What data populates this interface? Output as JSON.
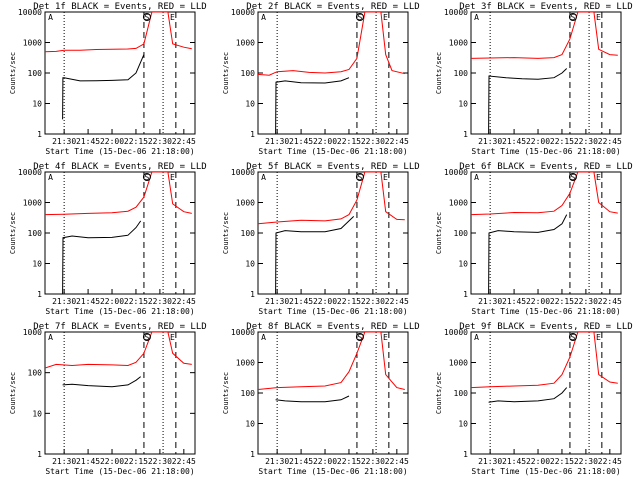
{
  "chart_data": [
    {
      "type": "line",
      "title": "Det 1f BLACK = Events, RED = LLD",
      "xlabel": "Start Time (15-Dec-06 21:18:00)",
      "ylabel": "Counts/sec",
      "x_ticks": [
        "21:30",
        "21:45",
        "22:00",
        "22:15",
        "22:30",
        "22:45"
      ],
      "ylim": [
        1,
        10000
      ],
      "y_scale": "log",
      "y_ticks": [
        "1",
        "10",
        "100",
        "1000",
        "10000"
      ],
      "markers": [
        "A",
        "S",
        "E"
      ],
      "series": [
        {
          "name": "LLD",
          "color": "#ff0000",
          "points": [
            [
              "21:18",
              500
            ],
            [
              "21:25",
              510
            ],
            [
              "21:30",
              560
            ],
            [
              "21:40",
              560
            ],
            [
              "21:50",
              590
            ],
            [
              "22:00",
              600
            ],
            [
              "22:10",
              610
            ],
            [
              "22:15",
              640
            ],
            [
              "22:20",
              900
            ],
            [
              "22:25",
              10000
            ],
            [
              "22:35",
              10000
            ],
            [
              "22:38",
              900
            ],
            [
              "22:45",
              700
            ],
            [
              "22:50",
              620
            ]
          ]
        },
        {
          "name": "Events",
          "color": "#000000",
          "points": [
            [
              "21:29",
              3
            ],
            [
              "21:29.2",
              70
            ],
            [
              "21:30",
              70
            ],
            [
              "21:40",
              55
            ],
            [
              "21:50",
              56
            ],
            [
              "22:00",
              57
            ],
            [
              "22:10",
              60
            ],
            [
              "22:15",
              100
            ],
            [
              "22:20",
              400
            ]
          ]
        }
      ]
    },
    {
      "type": "line",
      "title": "Det 2f BLACK = Events, RED = LLD",
      "xlabel": "Start Time (15-Dec-06 21:18:00)",
      "ylabel": "Counts/sec",
      "x_ticks": [
        "21:30",
        "21:45",
        "22:00",
        "22:15",
        "22:30",
        "22:45"
      ],
      "ylim": [
        1,
        10000
      ],
      "y_scale": "log",
      "y_ticks": [
        "1",
        "10",
        "100",
        "1000",
        "10000"
      ],
      "markers": [
        "A",
        "S",
        "E"
      ],
      "series": [
        {
          "name": "LLD",
          "color": "#ff0000",
          "points": [
            [
              "21:18",
              90
            ],
            [
              "21:25",
              85
            ],
            [
              "21:30",
              110
            ],
            [
              "21:40",
              120
            ],
            [
              "21:50",
              105
            ],
            [
              "22:00",
              100
            ],
            [
              "22:10",
              110
            ],
            [
              "22:15",
              130
            ],
            [
              "22:20",
              300
            ],
            [
              "22:25",
              10000
            ],
            [
              "22:35",
              10000
            ],
            [
              "22:38",
              400
            ],
            [
              "22:42",
              120
            ],
            [
              "22:50",
              95
            ]
          ]
        },
        {
          "name": "Events",
          "color": "#000000",
          "points": [
            [
              "21:29",
              1
            ],
            [
              "21:29.3",
              50
            ],
            [
              "21:35",
              55
            ],
            [
              "21:45",
              48
            ],
            [
              "22:00",
              47
            ],
            [
              "22:10",
              55
            ],
            [
              "22:15",
              70
            ]
          ]
        }
      ]
    },
    {
      "type": "line",
      "title": "Det 3f BLACK = Events, RED = LLD",
      "xlabel": "Start Time (15-Dec-06 21:18:00)",
      "ylabel": "Counts/sec",
      "x_ticks": [
        "21:30",
        "21:45",
        "22:00",
        "22:15",
        "22:30",
        "22:45"
      ],
      "ylim": [
        1,
        10000
      ],
      "y_scale": "log",
      "y_ticks": [
        "1",
        "10",
        "100",
        "1000",
        "10000"
      ],
      "markers": [
        "A",
        "S",
        "E"
      ],
      "series": [
        {
          "name": "LLD",
          "color": "#ff0000",
          "points": [
            [
              "21:18",
              300
            ],
            [
              "21:30",
              310
            ],
            [
              "21:45",
              320
            ],
            [
              "22:00",
              300
            ],
            [
              "22:10",
              320
            ],
            [
              "22:15",
              400
            ],
            [
              "22:20",
              1300
            ],
            [
              "22:25",
              10000
            ],
            [
              "22:35",
              10000
            ],
            [
              "22:38",
              600
            ],
            [
              "22:45",
              400
            ],
            [
              "22:50",
              380
            ]
          ]
        },
        {
          "name": "Events",
          "color": "#000000",
          "points": [
            [
              "21:29",
              1
            ],
            [
              "21:29.3",
              80
            ],
            [
              "21:40",
              70
            ],
            [
              "21:50",
              65
            ],
            [
              "22:00",
              62
            ],
            [
              "22:10",
              70
            ],
            [
              "22:15",
              100
            ],
            [
              "22:18",
              140
            ]
          ]
        }
      ]
    },
    {
      "type": "line",
      "title": "Det 4f BLACK = Events, RED = LLD",
      "xlabel": "Start Time (15-Dec-06 21:18:00)",
      "ylabel": "Counts/sec",
      "x_ticks": [
        "21:30",
        "21:45",
        "22:00",
        "22:15",
        "22:30",
        "22:45"
      ],
      "ylim": [
        1,
        10000
      ],
      "y_scale": "log",
      "y_ticks": [
        "1",
        "10",
        "100",
        "1000",
        "10000"
      ],
      "markers": [
        "A",
        "S",
        "E"
      ],
      "series": [
        {
          "name": "LLD",
          "color": "#ff0000",
          "points": [
            [
              "21:18",
              400
            ],
            [
              "21:30",
              410
            ],
            [
              "21:45",
              440
            ],
            [
              "22:00",
              460
            ],
            [
              "22:10",
              520
            ],
            [
              "22:15",
              700
            ],
            [
              "22:20",
              1500
            ],
            [
              "22:25",
              10000
            ],
            [
              "22:35",
              10000
            ],
            [
              "22:38",
              900
            ],
            [
              "22:45",
              500
            ],
            [
              "22:50",
              440
            ]
          ]
        },
        {
          "name": "Events",
          "color": "#000000",
          "points": [
            [
              "21:29",
              1
            ],
            [
              "21:29.3",
              70
            ],
            [
              "21:35",
              80
            ],
            [
              "21:45",
              70
            ],
            [
              "22:00",
              72
            ],
            [
              "22:10",
              85
            ],
            [
              "22:15",
              150
            ],
            [
              "22:18",
              250
            ]
          ]
        }
      ]
    },
    {
      "type": "line",
      "title": "Det 5f BLACK = Events, RED = LLD",
      "xlabel": "Start Time (15-Dec-06 21:18:00)",
      "ylabel": "Counts/sec",
      "x_ticks": [
        "21:30",
        "21:45",
        "22:00",
        "22:15",
        "22:30",
        "22:45"
      ],
      "ylim": [
        1,
        10000
      ],
      "y_scale": "log",
      "y_ticks": [
        "1",
        "10",
        "100",
        "1000",
        "10000"
      ],
      "markers": [
        "A",
        "S",
        "E"
      ],
      "series": [
        {
          "name": "LLD",
          "color": "#ff0000",
          "points": [
            [
              "21:18",
              200
            ],
            [
              "21:30",
              230
            ],
            [
              "21:45",
              260
            ],
            [
              "22:00",
              250
            ],
            [
              "22:10",
              290
            ],
            [
              "22:15",
              400
            ],
            [
              "22:20",
              1200
            ],
            [
              "22:25",
              10000
            ],
            [
              "22:35",
              10000
            ],
            [
              "22:38",
              500
            ],
            [
              "22:45",
              280
            ],
            [
              "22:50",
              270
            ]
          ]
        },
        {
          "name": "Events",
          "color": "#000000",
          "points": [
            [
              "21:29",
              1
            ],
            [
              "21:29.3",
              100
            ],
            [
              "21:35",
              120
            ],
            [
              "21:45",
              110
            ],
            [
              "22:00",
              110
            ],
            [
              "22:10",
              140
            ],
            [
              "22:15",
              250
            ],
            [
              "22:18",
              350
            ]
          ]
        }
      ]
    },
    {
      "type": "line",
      "title": "Det 6f BLACK = Events, RED = LLD",
      "xlabel": "Start Time (15-Dec-06 21:18:00)",
      "ylabel": "Counts/sec",
      "x_ticks": [
        "21:30",
        "21:45",
        "22:00",
        "22:15",
        "22:30",
        "22:45"
      ],
      "ylim": [
        1,
        10000
      ],
      "y_scale": "log",
      "y_ticks": [
        "1",
        "10",
        "100",
        "1000",
        "10000"
      ],
      "markers": [
        "A",
        "S",
        "E"
      ],
      "series": [
        {
          "name": "LLD",
          "color": "#ff0000",
          "points": [
            [
              "21:18",
              400
            ],
            [
              "21:30",
              420
            ],
            [
              "21:45",
              470
            ],
            [
              "22:00",
              460
            ],
            [
              "22:10",
              520
            ],
            [
              "22:15",
              800
            ],
            [
              "22:20",
              2000
            ],
            [
              "22:25",
              10000
            ],
            [
              "22:35",
              10000
            ],
            [
              "22:38",
              1000
            ],
            [
              "22:45",
              500
            ],
            [
              "22:50",
              450
            ]
          ]
        },
        {
          "name": "Events",
          "color": "#000000",
          "points": [
            [
              "21:29",
              1
            ],
            [
              "21:29.3",
              100
            ],
            [
              "21:35",
              120
            ],
            [
              "21:45",
              110
            ],
            [
              "22:00",
              105
            ],
            [
              "22:10",
              130
            ],
            [
              "22:15",
              200
            ],
            [
              "22:18",
              400
            ]
          ]
        }
      ]
    },
    {
      "type": "line",
      "title": "Det 7f BLACK = Events, RED = LLD",
      "xlabel": "Start Time (15-Dec-06 21:18:00)",
      "ylabel": "Counts/sec",
      "x_ticks": [
        "21:30",
        "21:45",
        "22:00",
        "22:15",
        "22:30",
        "22:45"
      ],
      "ylim": [
        1,
        1000
      ],
      "y_scale": "log",
      "y_ticks": [
        "1",
        "10",
        "100",
        "1000"
      ],
      "markers": [
        "A",
        "S",
        "E"
      ],
      "series": [
        {
          "name": "LLD",
          "color": "#ff0000",
          "points": [
            [
              "21:18",
              130
            ],
            [
              "21:25",
              160
            ],
            [
              "21:35",
              150
            ],
            [
              "21:45",
              160
            ],
            [
              "22:00",
              155
            ],
            [
              "22:10",
              150
            ],
            [
              "22:15",
              180
            ],
            [
              "22:20",
              300
            ],
            [
              "22:25",
              1000
            ],
            [
              "22:35",
              1000
            ],
            [
              "22:38",
              300
            ],
            [
              "22:45",
              170
            ],
            [
              "22:50",
              160
            ]
          ]
        },
        {
          "name": "Events",
          "color": "#000000",
          "points": [
            [
              "21:29",
              50
            ],
            [
              "21:35",
              52
            ],
            [
              "21:45",
              48
            ],
            [
              "22:00",
              45
            ],
            [
              "22:10",
              50
            ],
            [
              "22:15",
              65
            ],
            [
              "22:18",
              80
            ]
          ]
        }
      ]
    },
    {
      "type": "line",
      "title": "Det 8f BLACK = Events, RED = LLD",
      "xlabel": "Start Time (15-Dec-06 21:18:00)",
      "ylabel": "Counts/sec",
      "x_ticks": [
        "21:30",
        "21:45",
        "22:00",
        "22:15",
        "22:30",
        "22:45"
      ],
      "ylim": [
        1,
        10000
      ],
      "y_scale": "log",
      "y_ticks": [
        "1",
        "10",
        "100",
        "1000",
        "10000"
      ],
      "markers": [
        "A",
        "S",
        "E"
      ],
      "series": [
        {
          "name": "LLD",
          "color": "#ff0000",
          "points": [
            [
              "21:18",
              130
            ],
            [
              "21:30",
              150
            ],
            [
              "21:45",
              160
            ],
            [
              "22:00",
              170
            ],
            [
              "22:10",
              220
            ],
            [
              "22:15",
              500
            ],
            [
              "22:20",
              2000
            ],
            [
              "22:25",
              10000
            ],
            [
              "22:35",
              10000
            ],
            [
              "22:38",
              400
            ],
            [
              "22:45",
              150
            ],
            [
              "22:50",
              130
            ]
          ]
        },
        {
          "name": "Events",
          "color": "#000000",
          "points": [
            [
              "21:29",
              60
            ],
            [
              "21:35",
              55
            ],
            [
              "21:45",
              52
            ],
            [
              "22:00",
              52
            ],
            [
              "22:10",
              60
            ],
            [
              "22:15",
              80
            ]
          ]
        }
      ]
    },
    {
      "type": "line",
      "title": "Det 9f BLACK = Events, RED = LLD",
      "xlabel": "Start Time (15-Dec-06 21:18:00)",
      "ylabel": "Counts/sec",
      "x_ticks": [
        "21:30",
        "21:45",
        "22:00",
        "22:15",
        "22:30",
        "22:45"
      ],
      "ylim": [
        1,
        10000
      ],
      "y_scale": "log",
      "y_ticks": [
        "1",
        "10",
        "100",
        "1000",
        "10000"
      ],
      "markers": [
        "A",
        "S",
        "E"
      ],
      "series": [
        {
          "name": "LLD",
          "color": "#ff0000",
          "points": [
            [
              "21:18",
              150
            ],
            [
              "21:30",
              160
            ],
            [
              "21:45",
              170
            ],
            [
              "22:00",
              180
            ],
            [
              "22:10",
              210
            ],
            [
              "22:15",
              400
            ],
            [
              "22:20",
              1500
            ],
            [
              "22:25",
              10000
            ],
            [
              "22:35",
              10000
            ],
            [
              "22:38",
              400
            ],
            [
              "22:45",
              230
            ],
            [
              "22:50",
              210
            ]
          ]
        },
        {
          "name": "Events",
          "color": "#000000",
          "points": [
            [
              "21:29",
              50
            ],
            [
              "21:35",
              55
            ],
            [
              "21:45",
              52
            ],
            [
              "22:00",
              55
            ],
            [
              "22:10",
              65
            ],
            [
              "22:15",
              100
            ],
            [
              "22:18",
              150
            ]
          ]
        }
      ]
    }
  ]
}
